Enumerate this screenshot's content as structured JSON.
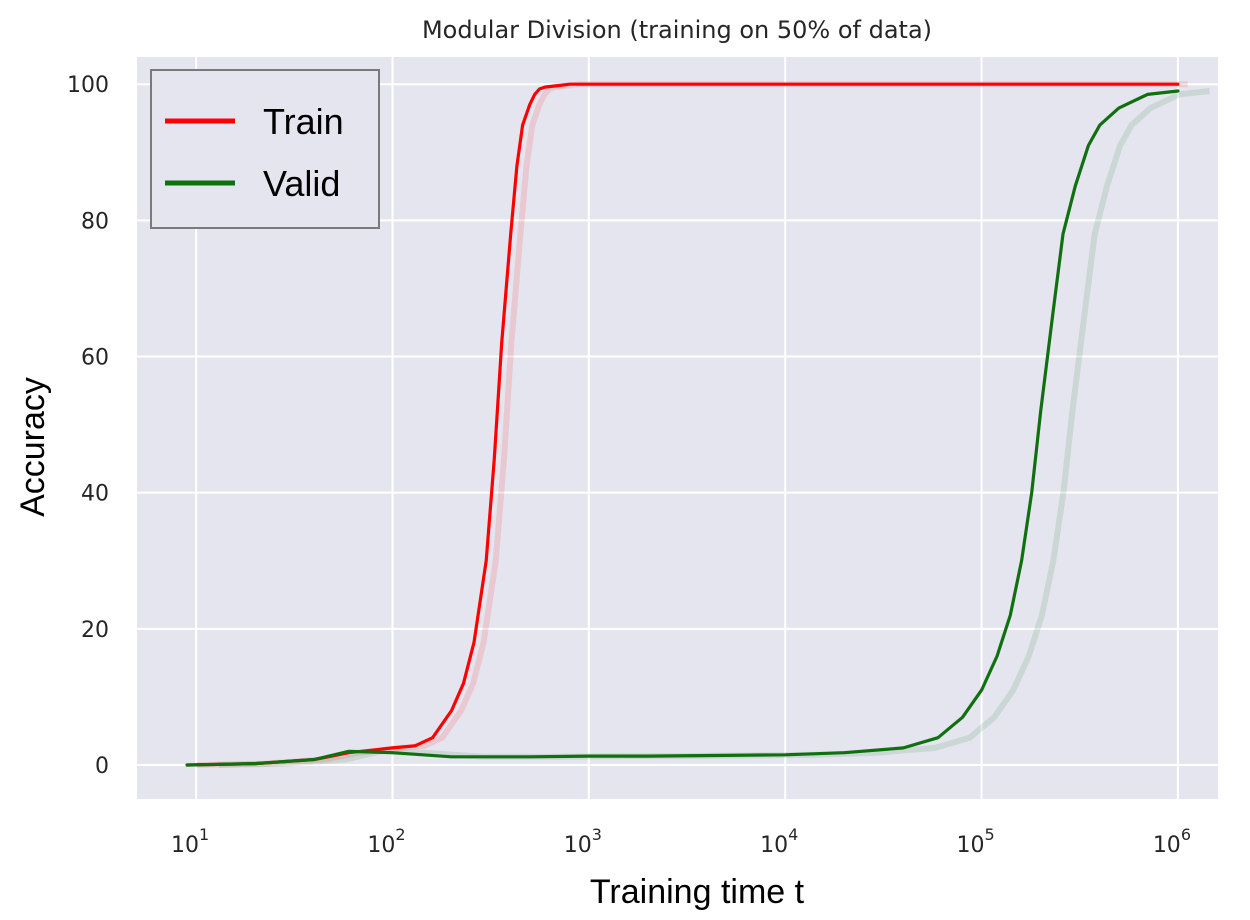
{
  "chart_data": {
    "type": "line",
    "title": "Modular Division (training on 50% of data)",
    "xlabel": "Training time t",
    "ylabel": "Accuracy",
    "xscale": "log",
    "xlim": [
      5,
      1600000
    ],
    "ylim": [
      -5,
      104
    ],
    "xticks": [
      {
        "value": 10,
        "base": "10",
        "exp": "1"
      },
      {
        "value": 100,
        "base": "10",
        "exp": "2"
      },
      {
        "value": 1000,
        "base": "10",
        "exp": "3"
      },
      {
        "value": 10000,
        "base": "10",
        "exp": "4"
      },
      {
        "value": 100000,
        "base": "10",
        "exp": "5"
      },
      {
        "value": 1000000,
        "base": "10",
        "exp": "6"
      }
    ],
    "yticks": [
      0,
      20,
      40,
      60,
      80,
      100
    ],
    "grid": true,
    "background": "#e5e5f0",
    "legend": {
      "position": "top-left",
      "entries": [
        "Train",
        "Valid"
      ]
    },
    "series": [
      {
        "name": "Train",
        "color": "#ff0000",
        "x": [
          9,
          20,
          40,
          60,
          100,
          130,
          160,
          200,
          230,
          260,
          300,
          330,
          360,
          400,
          430,
          460,
          500,
          530,
          560,
          600,
          700,
          800,
          1000,
          1200,
          1500,
          2000,
          3000,
          5000,
          10000,
          100000,
          1000000
        ],
        "y": [
          0,
          0.2,
          0.8,
          1.8,
          2.5,
          2.8,
          4,
          8,
          12,
          18,
          30,
          45,
          62,
          78,
          88,
          94,
          97,
          98.5,
          99.3,
          99.6,
          99.8,
          100,
          100,
          100,
          100,
          100,
          100,
          100,
          100,
          100,
          100
        ]
      },
      {
        "name": "Valid",
        "color": "#107010",
        "x": [
          9,
          20,
          40,
          60,
          100,
          200,
          500,
          1000,
          2000,
          5000,
          10000,
          20000,
          40000,
          60000,
          80000,
          100000,
          120000,
          140000,
          160000,
          180000,
          200000,
          230000,
          260000,
          300000,
          350000,
          400000,
          500000,
          700000,
          1000000
        ],
        "y": [
          0,
          0.2,
          0.8,
          2,
          1.8,
          1.2,
          1.2,
          1.3,
          1.3,
          1.4,
          1.5,
          1.8,
          2.5,
          4,
          7,
          11,
          16,
          22,
          30,
          40,
          52,
          66,
          78,
          85,
          91,
          94,
          96.5,
          98.5,
          99
        ]
      }
    ]
  }
}
